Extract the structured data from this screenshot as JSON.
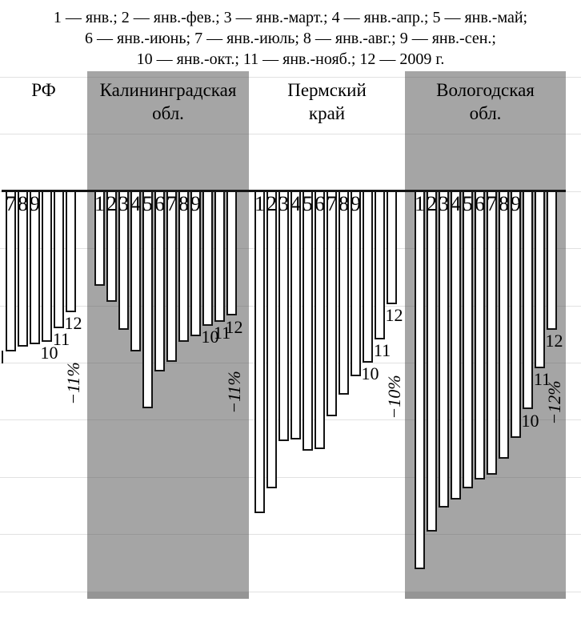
{
  "figure": {
    "legend_lines": [
      "1 — янв.; 2 — янв.-фев.; 3 — янв.-март.; 4 — янв.-апр.; 5 — янв.-май;",
      "6 — янв.-июнь; 7 — янв.-июль; 8 — янв.-авг.; 9 — янв.-сен.;",
      "10 — янв.-окт.; 11 — янв.-нояб.; 12 — 2009 г."
    ]
  },
  "chart_data": {
    "type": "bar",
    "title": "",
    "unit": "%",
    "axis": {
      "ymax": 10,
      "ymin": -35,
      "grid_step": 5,
      "baseline": 0,
      "grid": true
    },
    "groups": [
      {
        "key": "rf",
        "label_lines": [
          "РФ"
        ],
        "panel_shaded": false,
        "annotation": "−11%",
        "bars": [
          {
            "num": "7",
            "value": -14.0,
            "num_inside": true
          },
          {
            "num": "8",
            "value": -13.6,
            "num_inside": true
          },
          {
            "num": "9",
            "value": -13.4,
            "num_inside": true
          },
          {
            "num": "10",
            "value": -13.2,
            "num_inside": false
          },
          {
            "num": "11",
            "value": -12.0,
            "num_inside": false
          },
          {
            "num": "12",
            "value": -10.6,
            "num_inside": false
          }
        ]
      },
      {
        "key": "kaliningrad",
        "label_lines": [
          "Калининградская",
          "обл."
        ],
        "panel_shaded": true,
        "annotation": "−11%",
        "bars": [
          {
            "num": "1",
            "value": -8.3,
            "num_inside": true
          },
          {
            "num": "2",
            "value": -9.7,
            "num_inside": true
          },
          {
            "num": "3",
            "value": -12.1,
            "num_inside": true
          },
          {
            "num": "4",
            "value": -14.0,
            "num_inside": true
          },
          {
            "num": "5",
            "value": -19.0,
            "num_inside": true
          },
          {
            "num": "6",
            "value": -15.8,
            "num_inside": true
          },
          {
            "num": "7",
            "value": -14.9,
            "num_inside": true
          },
          {
            "num": "8",
            "value": -13.2,
            "num_inside": true
          },
          {
            "num": "9",
            "value": -12.7,
            "num_inside": true
          },
          {
            "num": "10",
            "value": -11.8,
            "num_inside": false
          },
          {
            "num": "11",
            "value": -11.4,
            "num_inside": false
          },
          {
            "num": "12",
            "value": -10.9,
            "num_inside": false
          }
        ]
      },
      {
        "key": "perm",
        "label_lines": [
          "Пермский",
          "край"
        ],
        "panel_shaded": false,
        "annotation": "−10%",
        "bars": [
          {
            "num": "1",
            "value": -28.2,
            "num_inside": true
          },
          {
            "num": "2",
            "value": -26.0,
            "num_inside": true
          },
          {
            "num": "3",
            "value": -21.9,
            "num_inside": true
          },
          {
            "num": "4",
            "value": -21.7,
            "num_inside": true
          },
          {
            "num": "5",
            "value": -22.7,
            "num_inside": true
          },
          {
            "num": "6",
            "value": -22.6,
            "num_inside": true
          },
          {
            "num": "7",
            "value": -19.7,
            "num_inside": true
          },
          {
            "num": "8",
            "value": -17.8,
            "num_inside": true
          },
          {
            "num": "9",
            "value": -16.2,
            "num_inside": true
          },
          {
            "num": "10",
            "value": -15.0,
            "num_inside": false
          },
          {
            "num": "11",
            "value": -13.0,
            "num_inside": false
          },
          {
            "num": "12",
            "value": -9.9,
            "num_inside": false
          }
        ]
      },
      {
        "key": "vologda",
        "label_lines": [
          "Вологодская",
          "обл."
        ],
        "panel_shaded": true,
        "annotation": "−12%",
        "bars": [
          {
            "num": "1",
            "value": -33.1,
            "num_inside": true
          },
          {
            "num": "2",
            "value": -29.8,
            "num_inside": true
          },
          {
            "num": "3",
            "value": -27.7,
            "num_inside": true
          },
          {
            "num": "4",
            "value": -27.0,
            "num_inside": true
          },
          {
            "num": "5",
            "value": -26.0,
            "num_inside": true
          },
          {
            "num": "6",
            "value": -25.2,
            "num_inside": true
          },
          {
            "num": "7",
            "value": -24.8,
            "num_inside": true
          },
          {
            "num": "8",
            "value": -23.4,
            "num_inside": true
          },
          {
            "num": "9",
            "value": -21.6,
            "num_inside": true
          },
          {
            "num": "10",
            "value": -19.1,
            "num_inside": false
          },
          {
            "num": "11",
            "value": -15.5,
            "num_inside": false
          },
          {
            "num": "12",
            "value": -12.1,
            "num_inside": false
          }
        ]
      }
    ]
  }
}
